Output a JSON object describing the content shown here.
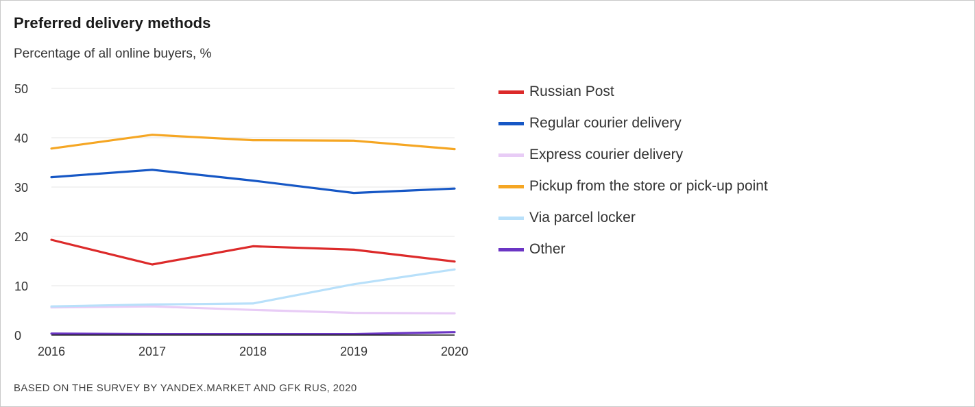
{
  "header": {
    "title": "Preferred delivery methods",
    "subtitle": "Percentage of all online buyers, %"
  },
  "footer": {
    "source": "BASED ON THE SURVEY BY YANDEX.MARKET AND GFK RUS, 2020"
  },
  "chart_data": {
    "type": "line",
    "title": "Preferred delivery methods",
    "subtitle": "Percentage of all online buyers, %",
    "x": [
      "2016",
      "2017",
      "2018",
      "2019",
      "2020"
    ],
    "ylim": [
      0,
      50
    ],
    "yticks": [
      0,
      10,
      20,
      30,
      40,
      50
    ],
    "grid": true,
    "legend_position": "right",
    "series": [
      {
        "name": "Russian Post",
        "color": "#dc2a2a",
        "values": [
          19.3,
          14.3,
          18.0,
          17.3,
          14.9
        ]
      },
      {
        "name": "Regular courier delivery",
        "color": "#1657c5",
        "values": [
          32.0,
          33.5,
          31.3,
          28.8,
          29.7
        ]
      },
      {
        "name": "Express courier delivery",
        "color": "#e8ccf6",
        "values": [
          5.6,
          5.8,
          5.1,
          4.5,
          4.4
        ]
      },
      {
        "name": "Pickup from the store or pick-up point",
        "color": "#f5a623",
        "values": [
          37.8,
          40.6,
          39.5,
          39.4,
          37.7
        ]
      },
      {
        "name": "Via parcel locker",
        "color": "#b8e0fa",
        "values": [
          5.8,
          6.2,
          6.4,
          10.3,
          13.3
        ]
      },
      {
        "name": "Other",
        "color": "#6b35c4",
        "values": [
          0.3,
          0.2,
          0.2,
          0.2,
          0.6
        ]
      }
    ]
  }
}
